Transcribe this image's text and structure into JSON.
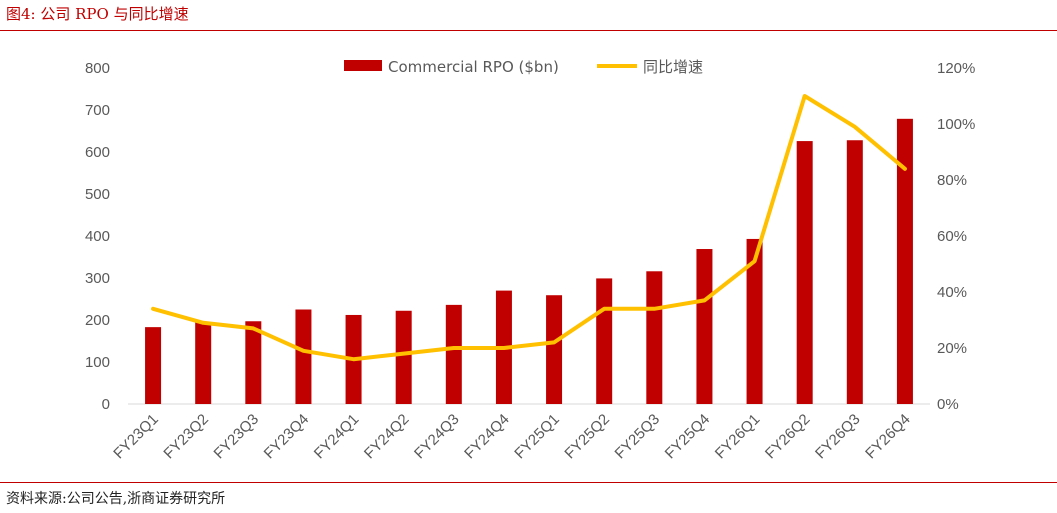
{
  "header": {
    "title": "图4:   公司 RPO 与同比增速"
  },
  "footer": {
    "source": "资料来源:公司公告,浙商证券研究所"
  },
  "chart_data": {
    "type": "bar",
    "categories": [
      "FY23Q1",
      "FY23Q2",
      "FY23Q3",
      "FY23Q4",
      "FY24Q1",
      "FY24Q2",
      "FY24Q3",
      "FY24Q4",
      "FY25Q1",
      "FY25Q2",
      "FY25Q3",
      "FY25Q4",
      "FY26Q1",
      "FY26Q2",
      "FY26Q3",
      "FY26Q4"
    ],
    "series": [
      {
        "name": "Commercial RPO ($bn)",
        "type": "bar",
        "axis": "left",
        "color": "#c00000",
        "values": [
          183,
          195,
          197,
          225,
          212,
          222,
          236,
          270,
          259,
          299,
          316,
          369,
          393,
          626,
          628,
          679
        ]
      },
      {
        "name": "同比增速",
        "type": "line",
        "axis": "right",
        "color": "#ffc000",
        "values": [
          34,
          29,
          27,
          19,
          16,
          18,
          20,
          20,
          22,
          34,
          34,
          37,
          51,
          110,
          99,
          84
        ]
      }
    ],
    "y_left": {
      "ylim": [
        0,
        800
      ],
      "ticks": [
        "0",
        "100",
        "200",
        "300",
        "400",
        "500",
        "600",
        "700",
        "800"
      ]
    },
    "y_right": {
      "ylim": [
        0,
        120
      ],
      "ticks": [
        "0%",
        "20%",
        "40%",
        "60%",
        "80%",
        "100%",
        "120%"
      ]
    },
    "grid": false,
    "legend": "top-center"
  }
}
